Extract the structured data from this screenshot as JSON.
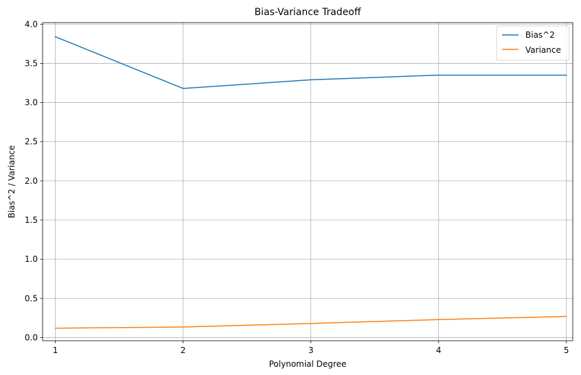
{
  "chart_data": {
    "type": "line",
    "title": "Bias-Variance Tradeoff",
    "xlabel": "Polynomial Degree",
    "ylabel": "Bias^2 / Variance",
    "x": [
      1,
      2,
      3,
      4,
      5
    ],
    "xticks": [
      "1",
      "2",
      "3",
      "4",
      "5"
    ],
    "xlim": [
      0.9,
      5.05
    ],
    "ylim": [
      -0.04,
      4.02
    ],
    "yticks": [
      "0.0",
      "0.5",
      "1.0",
      "1.5",
      "2.0",
      "2.5",
      "3.0",
      "3.5",
      "4.0"
    ],
    "grid": true,
    "legend_position": "top-right",
    "series": [
      {
        "name": "Bias^2",
        "color": "#1f77b4",
        "values": [
          3.84,
          3.18,
          3.29,
          3.35,
          3.35
        ]
      },
      {
        "name": "Variance",
        "color": "#ff7f0e",
        "values": [
          0.12,
          0.135,
          0.18,
          0.23,
          0.27
        ]
      }
    ]
  }
}
